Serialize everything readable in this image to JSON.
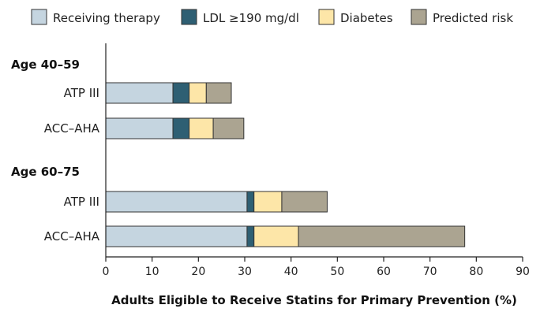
{
  "chart_data": {
    "type": "bar",
    "orientation": "horizontal",
    "stacked": true,
    "title": "",
    "xlabel": "Adults Eligible to Receive Statins for Primary Prevention (%)",
    "ylabel": "",
    "xlim": [
      0,
      90
    ],
    "xticks": [
      "0",
      "10",
      "20",
      "30",
      "40",
      "50",
      "60",
      "70",
      "80",
      "90"
    ],
    "legend_position": "top",
    "series": [
      {
        "name": "Receiving therapy",
        "color": "#c5d5e0"
      },
      {
        "name": "LDL ≥190 mg/dl",
        "color": "#2e5f73"
      },
      {
        "name": "Diabetes",
        "color": "#fde6a8"
      },
      {
        "name": "Predicted risk",
        "color": "#aba491"
      }
    ],
    "groups": [
      {
        "label": "Age 40–59",
        "bars": [
          {
            "category": "ATP III",
            "values": [
              14.5,
              3.5,
              3.7,
              5.4
            ]
          },
          {
            "category": "ACC–AHA",
            "values": [
              14.5,
              3.5,
              5.2,
              6.6
            ]
          }
        ]
      },
      {
        "label": "Age 60–75",
        "bars": [
          {
            "category": "ATP III",
            "values": [
              30.5,
              1.5,
              6.0,
              9.8
            ]
          },
          {
            "category": "ACC–AHA",
            "values": [
              30.5,
              1.5,
              9.6,
              35.9
            ]
          }
        ]
      }
    ]
  }
}
